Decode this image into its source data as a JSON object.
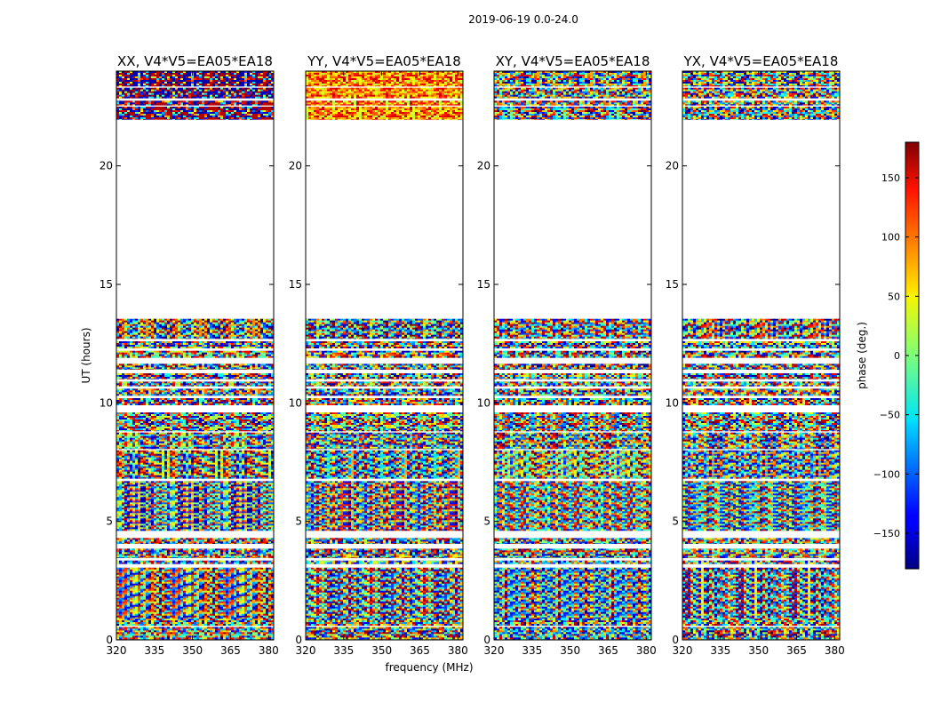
{
  "chart_data": {
    "type": "heatmap",
    "title": "2019-06-19 0.0-24.0",
    "xlabel": "frequency (MHz)",
    "ylabel": "UT (hours)",
    "xlim": [
      320,
      382
    ],
    "ylim": [
      0,
      24
    ],
    "xticks": [
      320,
      335,
      350,
      365,
      380
    ],
    "yticks": [
      0,
      5,
      10,
      15,
      20
    ],
    "panels": [
      {
        "title": "XX, V4*V5=EA05*EA18",
        "correlation": "XX"
      },
      {
        "title": "YY, V4*V5=EA05*EA18",
        "correlation": "YY"
      },
      {
        "title": "XY, V4*V5=EA05*EA18",
        "correlation": "XY"
      },
      {
        "title": "YX, V4*V5=EA05*EA18",
        "correlation": "YX"
      }
    ],
    "colorbar": {
      "label": "phase (deg.)",
      "range": [
        -180,
        180
      ],
      "ticks": [
        -150,
        -100,
        -50,
        0,
        50,
        100,
        150
      ],
      "colormap": "jet"
    },
    "data_bands_ut_hours": [
      [
        0.0,
        0.55
      ],
      [
        0.6,
        0.9
      ],
      [
        0.9,
        3.05
      ],
      [
        3.2,
        3.35
      ],
      [
        3.45,
        3.85
      ],
      [
        4.05,
        4.3
      ],
      [
        4.6,
        6.7
      ],
      [
        6.8,
        8.0
      ],
      [
        8.05,
        8.75
      ],
      [
        8.8,
        9.6
      ],
      [
        9.9,
        10.2
      ],
      [
        10.3,
        10.6
      ],
      [
        10.7,
        10.9
      ],
      [
        11.0,
        11.25
      ],
      [
        11.4,
        11.65
      ],
      [
        11.9,
        12.2
      ],
      [
        12.3,
        12.6
      ],
      [
        12.7,
        13.55
      ],
      [
        21.95,
        22.5
      ],
      [
        22.55,
        22.75
      ],
      [
        22.85,
        23.3
      ],
      [
        23.35,
        24.0
      ]
    ]
  }
}
